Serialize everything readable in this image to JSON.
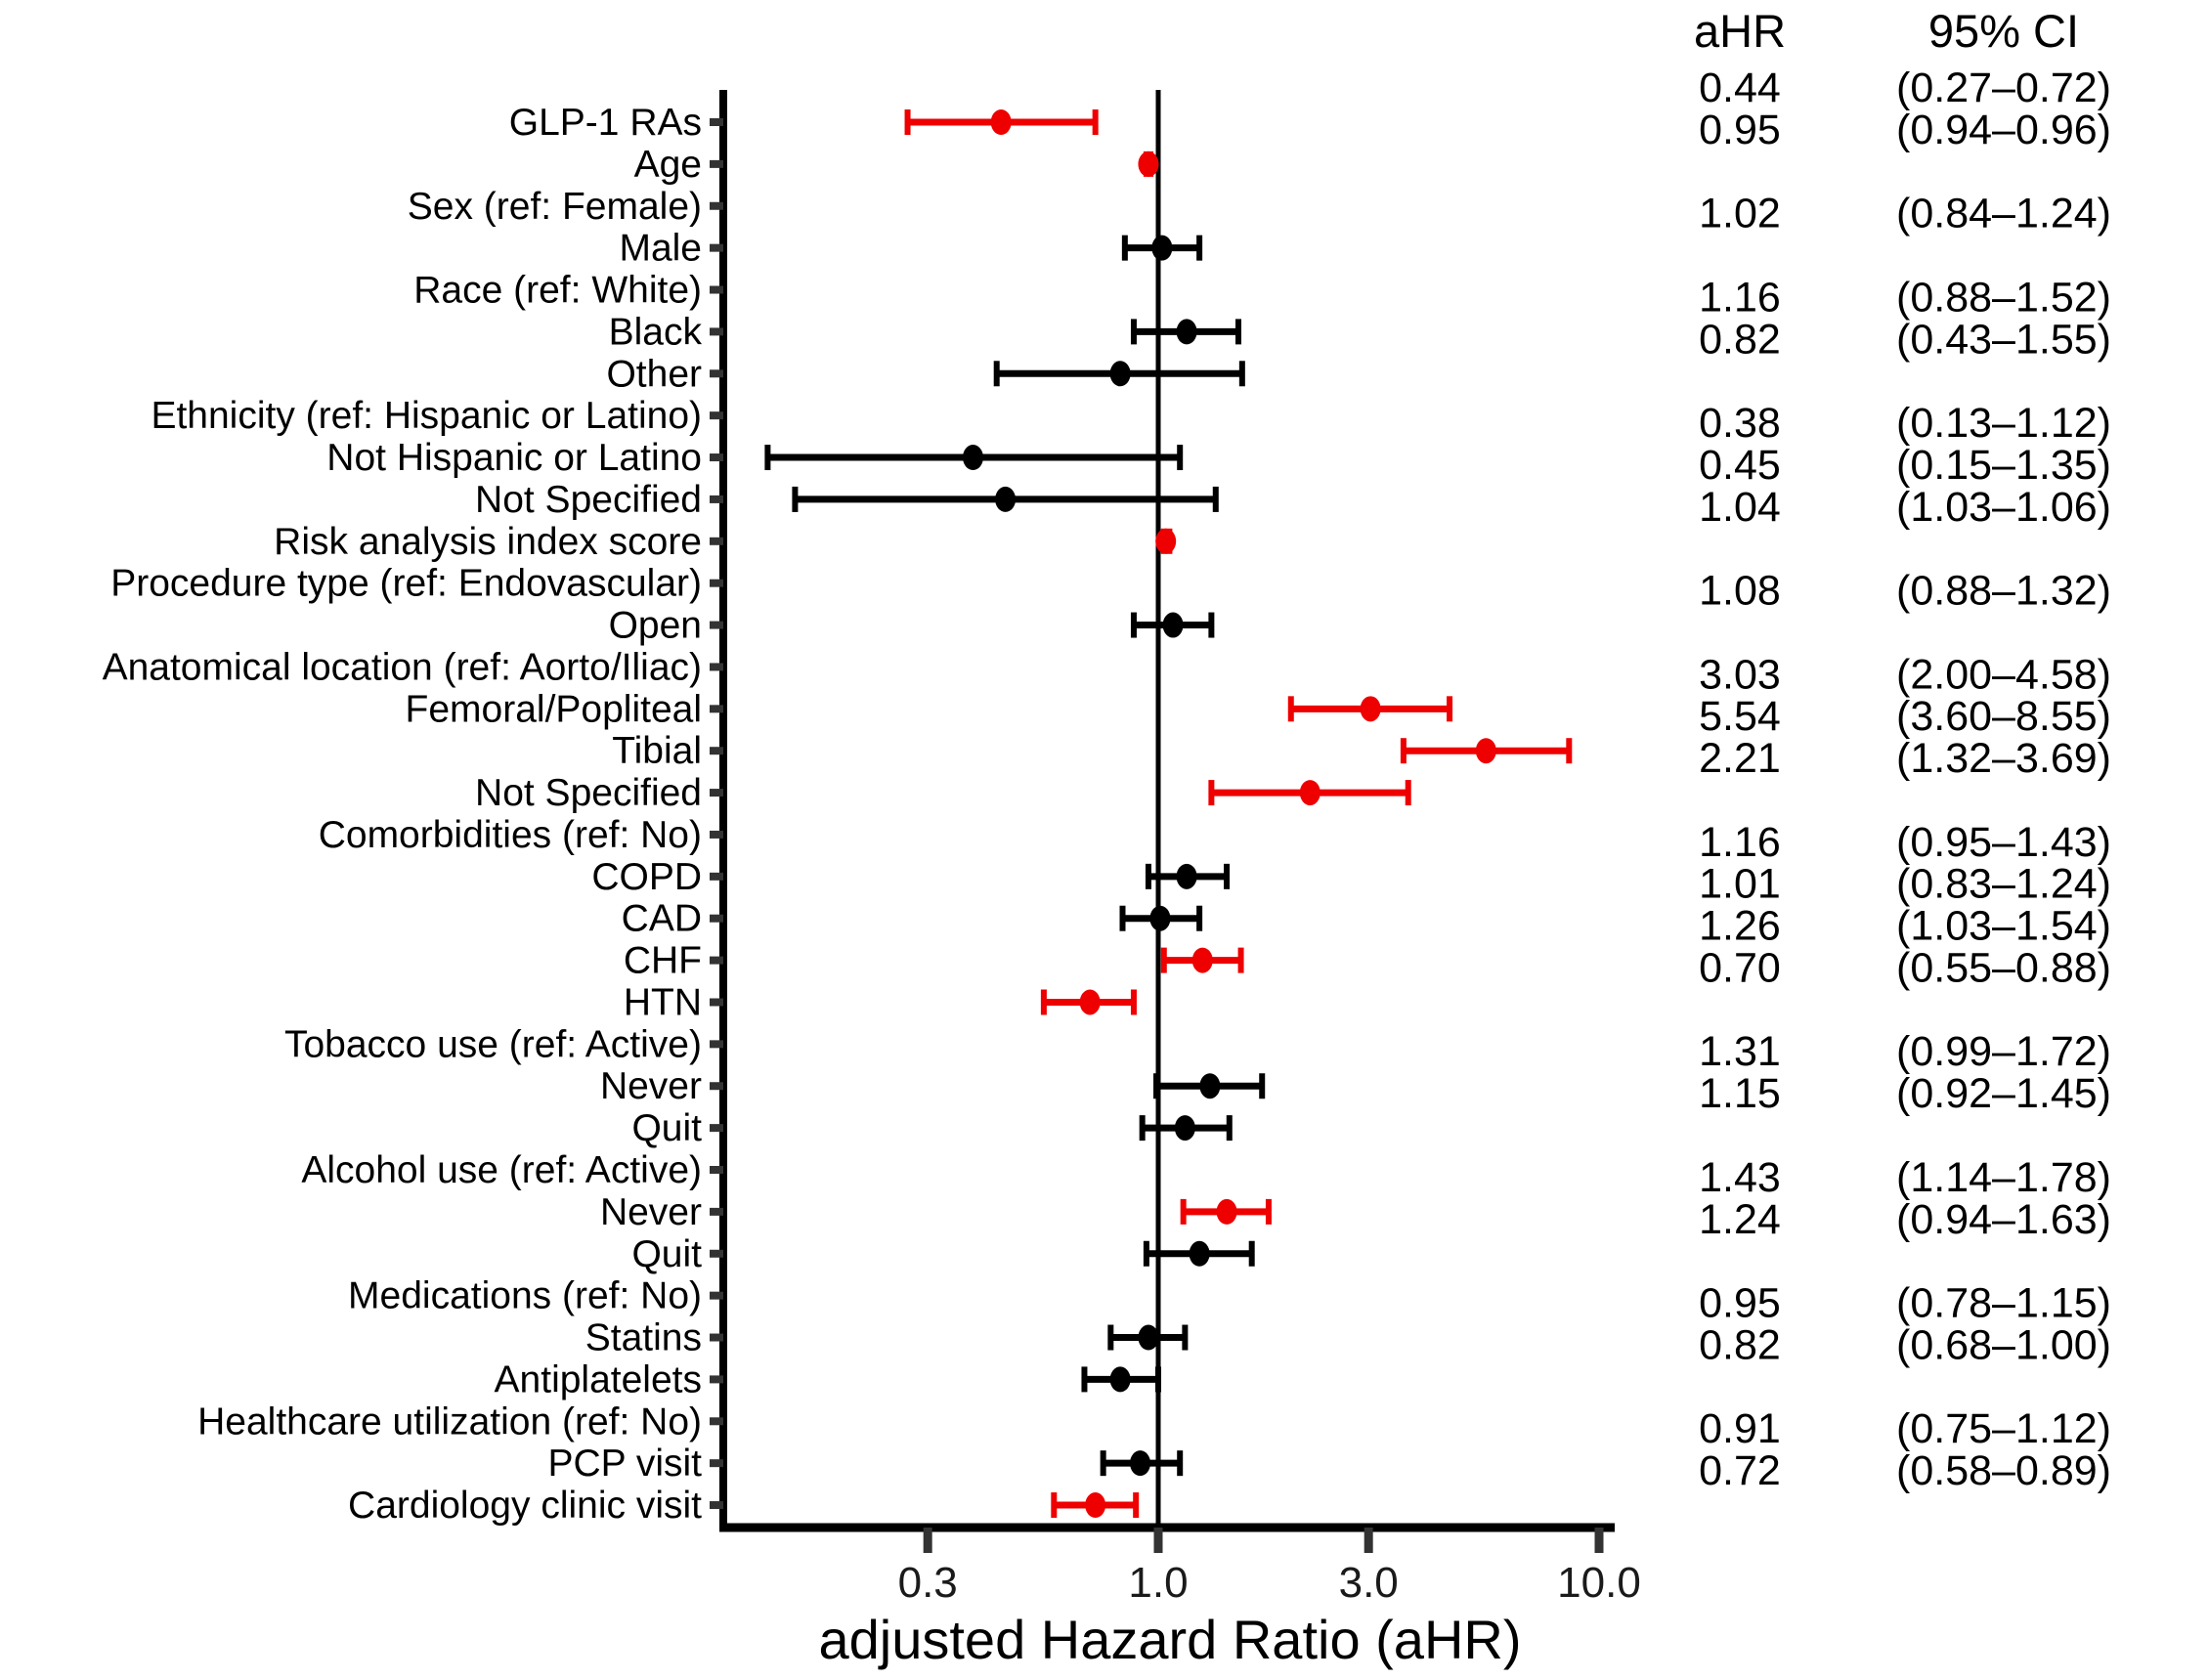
{
  "chart_data": {
    "type": "forest",
    "title": "",
    "xlabel": "adjusted Hazard Ratio (aHR)",
    "x_scale": "log10",
    "xlim": [
      0.1,
      11
    ],
    "grid": false,
    "reference_line": 1.0,
    "x_ticks": [
      0.3,
      1.0,
      3.0,
      10.0
    ],
    "x_tick_labels": [
      "0.3",
      "1.0",
      "3.0",
      "10.0"
    ],
    "columns": {
      "ahr_header": "aHR",
      "ci_header": "95% CI"
    },
    "colors": {
      "significant": "#ee0000",
      "nonsignificant": "#000000",
      "axis": "#000000",
      "tick_mark": "#333333"
    },
    "rows": [
      {
        "label": "GLP-1 RAs",
        "ahr": 0.44,
        "ci_low": 0.27,
        "ci_high": 0.72,
        "ahr_text": "0.44",
        "ci_text": "(0.27–0.72)",
        "significant": true
      },
      {
        "label": "Age",
        "ahr": 0.95,
        "ci_low": 0.94,
        "ci_high": 0.96,
        "ahr_text": "0.95",
        "ci_text": "(0.94–0.96)",
        "significant": true
      },
      {
        "label": "Sex (ref: Female)",
        "group_header": true
      },
      {
        "label": "Male",
        "ahr": 1.02,
        "ci_low": 0.84,
        "ci_high": 1.24,
        "ahr_text": "1.02",
        "ci_text": "(0.84–1.24)",
        "significant": false
      },
      {
        "label": "Race (ref: White)",
        "group_header": true
      },
      {
        "label": "Black",
        "ahr": 1.16,
        "ci_low": 0.88,
        "ci_high": 1.52,
        "ahr_text": "1.16",
        "ci_text": "(0.88–1.52)",
        "significant": false
      },
      {
        "label": "Other",
        "ahr": 0.82,
        "ci_low": 0.43,
        "ci_high": 1.55,
        "ahr_text": "0.82",
        "ci_text": "(0.43–1.55)",
        "significant": false
      },
      {
        "label": "Ethnicity (ref: Hispanic or Latino)",
        "group_header": true
      },
      {
        "label": "Not Hispanic or Latino",
        "ahr": 0.38,
        "ci_low": 0.13,
        "ci_high": 1.12,
        "ahr_text": "0.38",
        "ci_text": "(0.13–1.12)",
        "significant": false
      },
      {
        "label": "Not Specified",
        "ahr": 0.45,
        "ci_low": 0.15,
        "ci_high": 1.35,
        "ahr_text": "0.45",
        "ci_text": "(0.15–1.35)",
        "significant": false
      },
      {
        "label": "Risk analysis index score",
        "ahr": 1.04,
        "ci_low": 1.03,
        "ci_high": 1.06,
        "ahr_text": "1.04",
        "ci_text": "(1.03–1.06)",
        "significant": true
      },
      {
        "label": "Procedure type (ref: Endovascular)",
        "group_header": true
      },
      {
        "label": "Open",
        "ahr": 1.08,
        "ci_low": 0.88,
        "ci_high": 1.32,
        "ahr_text": "1.08",
        "ci_text": "(0.88–1.32)",
        "significant": false
      },
      {
        "label": "Anatomical location (ref: Aorto/Iliac)",
        "group_header": true
      },
      {
        "label": "Femoral/Popliteal",
        "ahr": 3.03,
        "ci_low": 2.0,
        "ci_high": 4.58,
        "ahr_text": "3.03",
        "ci_text": "(2.00–4.58)",
        "significant": true
      },
      {
        "label": "Tibial",
        "ahr": 5.54,
        "ci_low": 3.6,
        "ci_high": 8.55,
        "ahr_text": "5.54",
        "ci_text": "(3.60–8.55)",
        "significant": true
      },
      {
        "label": "Not Specified",
        "ahr": 2.21,
        "ci_low": 1.32,
        "ci_high": 3.69,
        "ahr_text": "2.21",
        "ci_text": "(1.32–3.69)",
        "significant": true
      },
      {
        "label": "Comorbidities (ref: No)",
        "group_header": true
      },
      {
        "label": "COPD",
        "ahr": 1.16,
        "ci_low": 0.95,
        "ci_high": 1.43,
        "ahr_text": "1.16",
        "ci_text": "(0.95–1.43)",
        "significant": false
      },
      {
        "label": "CAD",
        "ahr": 1.01,
        "ci_low": 0.83,
        "ci_high": 1.24,
        "ahr_text": "1.01",
        "ci_text": "(0.83–1.24)",
        "significant": false
      },
      {
        "label": "CHF",
        "ahr": 1.26,
        "ci_low": 1.03,
        "ci_high": 1.54,
        "ahr_text": "1.26",
        "ci_text": "(1.03–1.54)",
        "significant": true
      },
      {
        "label": "HTN",
        "ahr": 0.7,
        "ci_low": 0.55,
        "ci_high": 0.88,
        "ahr_text": "0.70",
        "ci_text": "(0.55–0.88)",
        "significant": true
      },
      {
        "label": "Tobacco use (ref: Active)",
        "group_header": true
      },
      {
        "label": "Never",
        "ahr": 1.31,
        "ci_low": 0.99,
        "ci_high": 1.72,
        "ahr_text": "1.31",
        "ci_text": "(0.99–1.72)",
        "significant": false
      },
      {
        "label": "Quit",
        "ahr": 1.15,
        "ci_low": 0.92,
        "ci_high": 1.45,
        "ahr_text": "1.15",
        "ci_text": "(0.92–1.45)",
        "significant": false
      },
      {
        "label": "Alcohol use (ref: Active)",
        "group_header": true
      },
      {
        "label": "Never",
        "ahr": 1.43,
        "ci_low": 1.14,
        "ci_high": 1.78,
        "ahr_text": "1.43",
        "ci_text": "(1.14–1.78)",
        "significant": true
      },
      {
        "label": "Quit",
        "ahr": 1.24,
        "ci_low": 0.94,
        "ci_high": 1.63,
        "ahr_text": "1.24",
        "ci_text": "(0.94–1.63)",
        "significant": false
      },
      {
        "label": "Medications (ref: No)",
        "group_header": true
      },
      {
        "label": "Statins",
        "ahr": 0.95,
        "ci_low": 0.78,
        "ci_high": 1.15,
        "ahr_text": "0.95",
        "ci_text": "(0.78–1.15)",
        "significant": false
      },
      {
        "label": "Antiplatelets",
        "ahr": 0.82,
        "ci_low": 0.68,
        "ci_high": 1.0,
        "ahr_text": "0.82",
        "ci_text": "(0.68–1.00)",
        "significant": false
      },
      {
        "label": "Healthcare utilization (ref: No)",
        "group_header": true
      },
      {
        "label": "PCP visit",
        "ahr": 0.91,
        "ci_low": 0.75,
        "ci_high": 1.12,
        "ahr_text": "0.91",
        "ci_text": "(0.75–1.12)",
        "significant": false
      },
      {
        "label": "Cardiology clinic visit",
        "ahr": 0.72,
        "ci_low": 0.58,
        "ci_high": 0.89,
        "ahr_text": "0.72",
        "ci_text": "(0.58–0.89)",
        "significant": true
      }
    ]
  }
}
